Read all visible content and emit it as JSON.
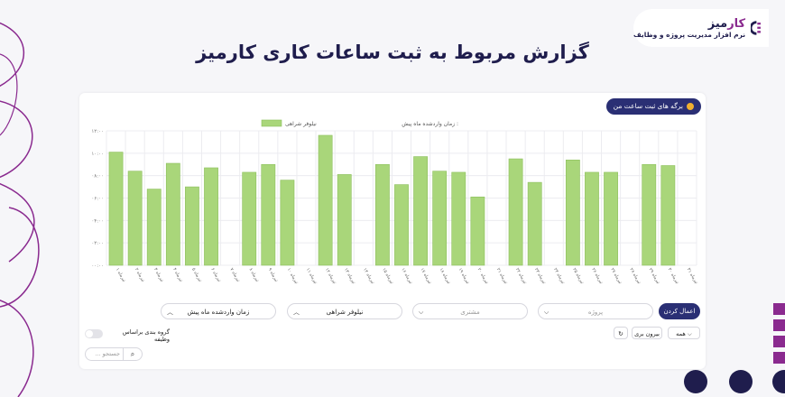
{
  "brand": {
    "name_part1": "کار",
    "name_part2": "میز",
    "tagline": "نرم افزار مدیریت پروژه و وظایف"
  },
  "page_title": "گزارش مربوط به ثبت ساعات کاری کارمیز",
  "panel": {
    "sessions_button": "برگه های ثبت ساعت من",
    "chart_legend_label": "زمان وارد‌شده ماه پیش :",
    "apply_button": "اعمال کردن",
    "filters": [
      {
        "key": "project",
        "value": "پروژه",
        "placeholder": true
      },
      {
        "key": "customer",
        "value": "مشتری",
        "placeholder": true
      },
      {
        "key": "user",
        "value": "نیلوفر شراهی",
        "placeholder": false
      },
      {
        "key": "period",
        "value": "زمان وارد‌شده ماه پیش",
        "placeholder": false
      }
    ],
    "group_by_label": "گروه بندی براساس وظیفه",
    "search_placeholder": "جستجو ...",
    "all_option": "همه",
    "export_label": "بیرون بری"
  },
  "chart_data": {
    "type": "bar",
    "x": [
      "تیرماه ۱",
      "تیرماه ۲",
      "تیرماه ۳",
      "تیرماه ۴",
      "تیرماه ۵",
      "تیرماه ۶",
      "تیرماه ۷",
      "تیرماه ۸",
      "تیرماه ۹",
      "تیرماه ۱۰",
      "تیرماه ۱۱",
      "تیرماه ۱۲",
      "تیرماه ۱۳",
      "تیرماه ۱۴",
      "تیرماه ۱۵",
      "تیرماه ۱۶",
      "تیرماه ۱۷",
      "تیرماه ۱۸",
      "تیرماه ۱۹",
      "تیرماه ۲۰",
      "تیرماه ۲۱",
      "تیرماه ۲۲",
      "تیرماه ۲۳",
      "تیرماه ۲۴",
      "تیرماه ۲۵",
      "تیرماه ۲۶",
      "تیرماه ۲۷",
      "تیرماه ۲۸",
      "تیرماه ۲۹",
      "تیرماه ۳۰",
      "تیرماه ۳۱"
    ],
    "series": [
      {
        "name": "نیلوفر شراهی",
        "values": [
          10.1,
          8.4,
          6.8,
          9.1,
          7.0,
          8.7,
          0,
          8.3,
          9.0,
          7.6,
          0,
          11.6,
          8.1,
          0,
          9.0,
          7.2,
          9.7,
          8.4,
          8.3,
          6.1,
          0,
          9.5,
          7.4,
          0,
          9.4,
          8.3,
          8.3,
          0,
          9.0,
          8.9,
          0
        ]
      }
    ],
    "yticks": [
      "۰۰:۰۰",
      "۰۲:۰۰",
      "۰۴:۰۰",
      "۰۶:۰۰",
      "۰۸:۰۰",
      "۱۰:۰۰",
      "۱۲:۰۰"
    ],
    "ylim": [
      0,
      12
    ],
    "grid": true,
    "colors": {
      "bar": "#a9d67a",
      "bar_border": "#8cbf5c",
      "grid": "#ececf0"
    }
  }
}
